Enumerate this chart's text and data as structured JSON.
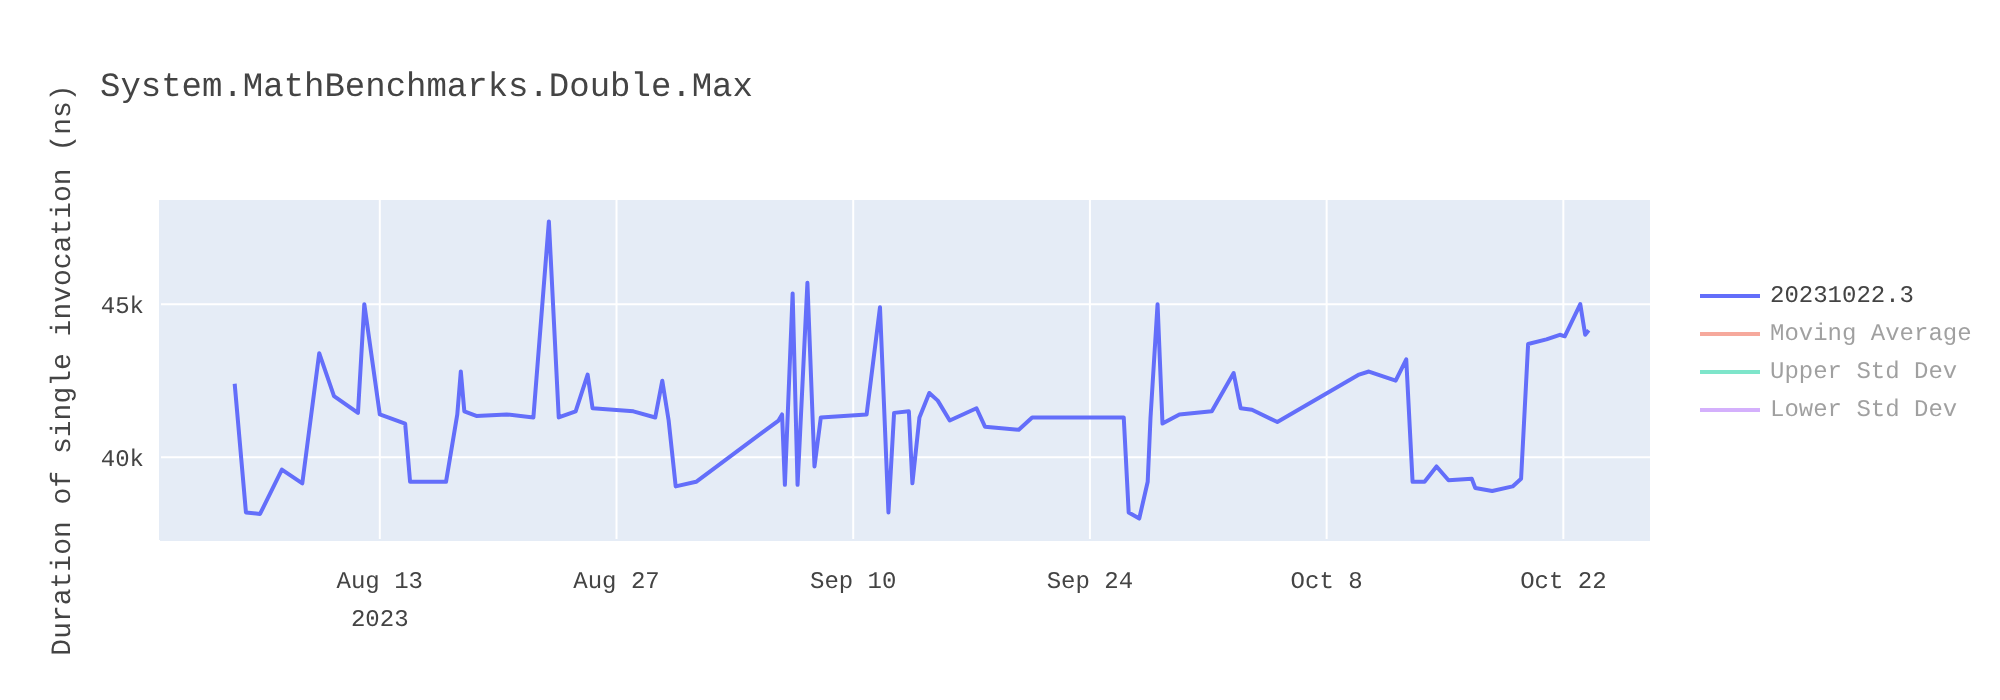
{
  "chart_data": {
    "type": "line",
    "title": "System.MathBenchmarks.Double.Max",
    "ylabel": "Duration of single invocation (ns)",
    "xlim": [
      "2023-07-31T00:00",
      "2023-10-27T03:00"
    ],
    "xticks": [
      {
        "value": "2023-08-13",
        "label": "Aug 13\n2023"
      },
      {
        "value": "2023-08-27",
        "label": "Aug 27"
      },
      {
        "value": "2023-09-10",
        "label": "Sep 10"
      },
      {
        "value": "2023-09-24",
        "label": "Sep 24"
      },
      {
        "value": "2023-10-08",
        "label": "Oct 8"
      },
      {
        "value": "2023-10-22",
        "label": "Oct 22"
      }
    ],
    "ylim": [
      37300,
      48400
    ],
    "yticks": [
      {
        "value": 40000,
        "label": "40k"
      },
      {
        "value": 45000,
        "label": "45k"
      }
    ],
    "grid": true,
    "legend": "top right",
    "marker": "none",
    "line_style": "solid",
    "x": [
      "2023-08-04T10:00",
      "2023-08-05T02:00",
      "2023-08-05T22:00",
      "2023-08-07T05:00",
      "2023-08-08T10:00",
      "2023-08-09T10:00",
      "2023-08-10T07:00",
      "2023-08-11T17:00",
      "2023-08-12T02:00",
      "2023-08-13T00:00",
      "2023-08-14T12:00",
      "2023-08-14T19:00",
      "2023-08-16T22:00",
      "2023-08-17T14:00",
      "2023-08-17T19:00",
      "2023-08-18T00:00",
      "2023-08-18T17:00",
      "2023-08-20T12:00",
      "2023-08-22T02:00",
      "2023-08-23T00:00",
      "2023-08-23T14:00",
      "2023-08-24T14:00",
      "2023-08-25T07:00",
      "2023-08-25T14:00",
      "2023-08-28T00:00",
      "2023-08-29T07:00",
      "2023-08-29T17:00",
      "2023-08-30T02:00",
      "2023-08-30T12:00",
      "2023-08-31T17:00",
      "2023-09-05T14:00",
      "2023-09-05T19:00",
      "2023-09-05T23:00",
      "2023-09-06T10:00",
      "2023-09-06T17:00",
      "2023-09-07T07:00",
      "2023-09-07T17:00",
      "2023-09-08T02:00",
      "2023-09-10T19:00",
      "2023-09-11T14:00",
      "2023-09-12T02:00",
      "2023-09-12T10:00",
      "2023-09-13T07:00",
      "2023-09-13T12:00",
      "2023-09-13T22:00",
      "2023-09-14T12:00",
      "2023-09-15T00:00",
      "2023-09-15T17:00",
      "2023-09-17T07:00",
      "2023-09-17T19:00",
      "2023-09-19T19:00",
      "2023-09-20T14:00",
      "2023-09-26T00:00",
      "2023-09-26T07:00",
      "2023-09-26T22:00",
      "2023-09-27T10:00",
      "2023-09-27T14:00",
      "2023-09-28T00:00",
      "2023-09-28T07:00",
      "2023-09-29T07:00",
      "2023-10-01T05:00",
      "2023-10-02T12:00",
      "2023-10-02T22:00",
      "2023-10-03T14:00",
      "2023-10-05T02:00",
      "2023-10-09T22:00",
      "2023-10-10T12:00",
      "2023-10-12T02:00",
      "2023-10-12T17:00",
      "2023-10-13T02:00",
      "2023-10-13T19:00",
      "2023-10-14T12:00",
      "2023-10-15T05:00",
      "2023-10-16T14:00",
      "2023-10-16T19:00",
      "2023-10-17T19:00",
      "2023-10-19T00:00",
      "2023-10-19T12:00",
      "2023-10-19T22:00",
      "2023-10-21T00:00",
      "2023-10-21T19:00",
      "2023-10-22T02:00",
      "2023-10-23T00:00",
      "2023-10-23T07:00",
      "2023-10-23T12:00"
    ],
    "series": [
      {
        "name": "20231022.3",
        "color": "#636efa",
        "values": [
          42400,
          38200,
          38150,
          39600,
          39150,
          43400,
          42000,
          41450,
          45000,
          41400,
          41100,
          39200,
          39200,
          41400,
          42800,
          41500,
          41350,
          41400,
          41300,
          47700,
          41300,
          41500,
          42700,
          41600,
          41500,
          41300,
          42500,
          41200,
          39050,
          39200,
          41200,
          41400,
          39100,
          45350,
          39100,
          45700,
          39700,
          41300,
          41400,
          44900,
          38200,
          41450,
          41500,
          39150,
          41300,
          42100,
          41850,
          41200,
          41600,
          41000,
          40900,
          41300,
          41300,
          38200,
          38000,
          39200,
          41300,
          45000,
          41100,
          41400,
          41500,
          42750,
          41600,
          41550,
          41150,
          42700,
          42800,
          42500,
          43200,
          39200,
          39200,
          39700,
          39250,
          39300,
          39000,
          38900,
          39050,
          39300,
          43700,
          43850,
          44000,
          43950,
          45000,
          44000,
          44150
        ]
      },
      {
        "name": "Moving Average",
        "color": "#ef553b",
        "values": [
          null,
          null,
          null,
          null,
          null,
          null,
          null,
          null,
          null,
          null,
          null,
          null,
          null,
          null,
          null,
          null,
          null,
          null,
          null,
          null,
          null,
          null,
          null,
          null,
          null,
          null,
          null,
          null,
          null,
          null,
          null,
          null,
          null,
          null,
          null,
          null,
          null,
          null,
          null,
          null,
          null,
          null,
          null,
          null,
          null,
          null,
          null,
          null,
          null,
          null,
          null,
          null,
          null,
          null,
          null,
          null,
          null,
          null,
          null,
          null,
          null,
          null,
          null,
          null,
          null,
          null,
          null,
          null,
          null,
          null,
          null,
          null,
          null,
          null,
          null,
          null,
          null,
          null,
          null,
          null,
          null,
          null,
          null,
          null,
          null
        ]
      },
      {
        "name": "Upper Std Dev",
        "color": "#00cc96",
        "values": [
          null,
          null,
          null,
          null,
          null,
          null,
          null,
          null,
          null,
          null,
          null,
          null,
          null,
          null,
          null,
          null,
          null,
          null,
          null,
          null,
          null,
          null,
          null,
          null,
          null,
          null,
          null,
          null,
          null,
          null,
          null,
          null,
          null,
          null,
          null,
          null,
          null,
          null,
          null,
          null,
          null,
          null,
          null,
          null,
          null,
          null,
          null,
          null,
          null,
          null,
          null,
          null,
          null,
          null,
          null,
          null,
          null,
          null,
          null,
          null,
          null,
          null,
          null,
          null,
          null,
          null,
          null,
          null,
          null,
          null,
          null,
          null,
          null,
          null,
          null,
          null,
          null,
          null,
          null,
          null,
          null,
          null,
          null,
          null,
          null
        ]
      },
      {
        "name": "Lower Std Dev",
        "color": "#ab63fa",
        "values": [
          null,
          null,
          null,
          null,
          null,
          null,
          null,
          null,
          null,
          null,
          null,
          null,
          null,
          null,
          null,
          null,
          null,
          null,
          null,
          null,
          null,
          null,
          null,
          null,
          null,
          null,
          null,
          null,
          null,
          null,
          null,
          null,
          null,
          null,
          null,
          null,
          null,
          null,
          null,
          null,
          null,
          null,
          null,
          null,
          null,
          null,
          null,
          null,
          null,
          null,
          null,
          null,
          null,
          null,
          null,
          null,
          null,
          null,
          null,
          null,
          null,
          null,
          null,
          null,
          null,
          null,
          null,
          null,
          null,
          null,
          null,
          null,
          null,
          null,
          null,
          null,
          null,
          null,
          null,
          null,
          null,
          null,
          null,
          null,
          null
        ]
      }
    ]
  }
}
